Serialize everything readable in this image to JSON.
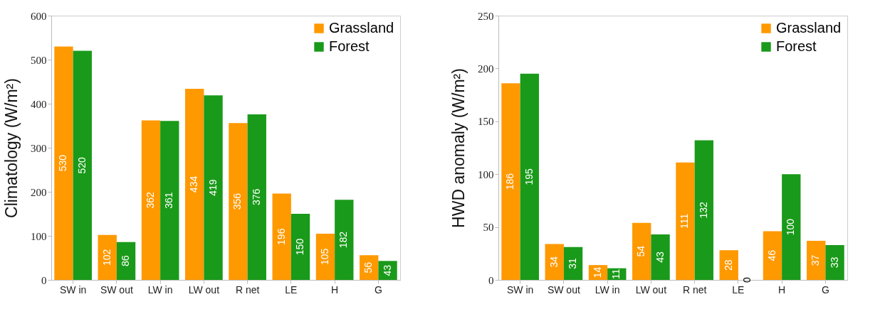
{
  "chart_data": [
    {
      "type": "bar",
      "ylabel": "Climatology (W/m²)",
      "categories": [
        "SW in",
        "SW out",
        "LW in",
        "LW out",
        "R net",
        "LE",
        "H",
        "G"
      ],
      "series": [
        {
          "name": "Grassland",
          "color": "#ff9900",
          "values": [
            530,
            102,
            362,
            434,
            356,
            196,
            105,
            56
          ]
        },
        {
          "name": "Forest",
          "color": "#1a9a1a",
          "values": [
            520,
            86,
            361,
            419,
            376,
            150,
            182,
            43
          ]
        }
      ],
      "ylim": [
        0,
        600
      ],
      "yticks": [
        0,
        100,
        200,
        300,
        400,
        500,
        600
      ],
      "data_labels": true,
      "legend": "top right",
      "grid": false
    },
    {
      "type": "bar",
      "ylabel": "HWD anomaly (W/m²)",
      "categories": [
        "SW in",
        "SW out",
        "LW in",
        "LW out",
        "R net",
        "LE",
        "H",
        "G"
      ],
      "series": [
        {
          "name": "Grassland",
          "color": "#ff9900",
          "values": [
            186,
            34,
            14,
            54,
            111,
            28,
            46,
            37
          ]
        },
        {
          "name": "Forest",
          "color": "#1a9a1a",
          "values": [
            195,
            31,
            11,
            43,
            132,
            0,
            100,
            33
          ]
        }
      ],
      "ylim": [
        0,
        250
      ],
      "yticks": [
        0,
        50,
        100,
        150,
        200,
        250
      ],
      "data_labels": true,
      "legend": "top right",
      "grid": false
    }
  ]
}
